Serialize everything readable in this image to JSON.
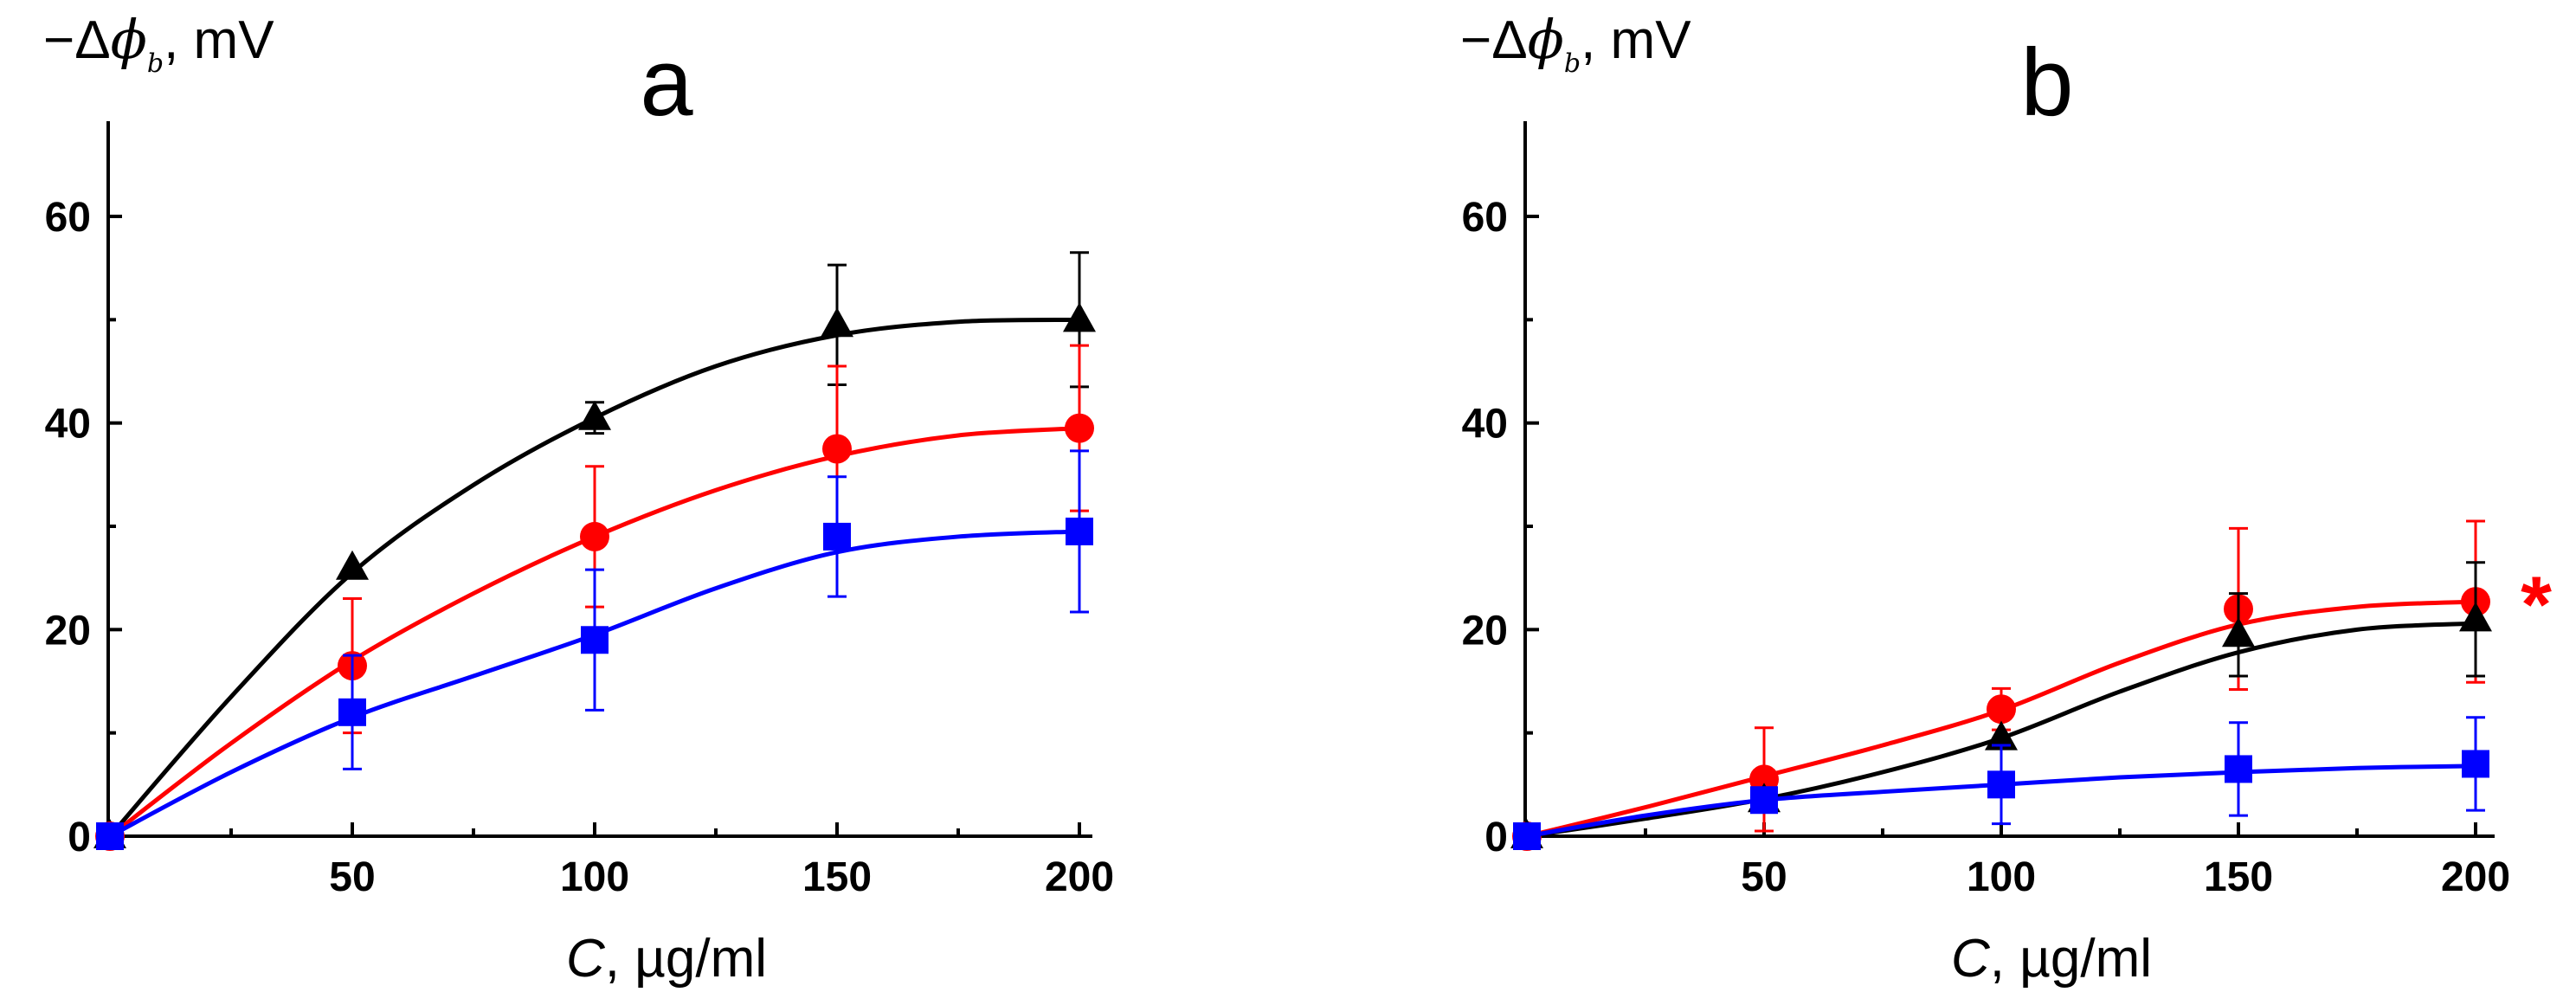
{
  "colors": {
    "black": "#000000",
    "red": "#ff0000",
    "blue": "#0000ff"
  },
  "chart_data": [
    {
      "type": "line",
      "panel": "a",
      "title": "a",
      "ylabel_prefix": "−Δ",
      "ylabel_symbol": "ϕ",
      "ylabel_sub": "b",
      "ylabel_unit": ", mV",
      "xlabel_symbol": "C",
      "xlabel_unit": ", µg/ml",
      "xlim": [
        0,
        205
      ],
      "ylim": [
        0,
        68
      ],
      "xticks": [
        50,
        100,
        150,
        200
      ],
      "yticks": [
        0,
        20,
        40,
        60
      ],
      "series": [
        {
          "name": "black",
          "marker": "triangle",
          "color": "#000000",
          "x": [
            0,
            50,
            100,
            150,
            200
          ],
          "y": [
            0,
            26,
            40.5,
            49.5,
            50
          ],
          "err": [
            0,
            0,
            1.5,
            5.8,
            6.5
          ],
          "fit_x": [
            0,
            25,
            50,
            75,
            100,
            125,
            150,
            175,
            200
          ],
          "fit_y": [
            0,
            13.5,
            25.5,
            34,
            40.5,
            45.5,
            48.5,
            49.8,
            50
          ]
        },
        {
          "name": "red",
          "marker": "circle",
          "color": "#ff0000",
          "x": [
            0,
            50,
            100,
            150,
            200
          ],
          "y": [
            0,
            16.5,
            29,
            37.5,
            39.5
          ],
          "err": [
            0,
            6.5,
            6.8,
            8,
            8
          ],
          "fit_x": [
            0,
            25,
            50,
            75,
            100,
            125,
            150,
            175,
            200
          ],
          "fit_y": [
            0,
            9,
            17,
            23.5,
            29,
            33.5,
            36.8,
            38.8,
            39.5
          ]
        },
        {
          "name": "blue",
          "marker": "square",
          "color": "#0000ff",
          "x": [
            0,
            50,
            100,
            150,
            200
          ],
          "y": [
            0,
            12,
            19,
            29,
            29.5
          ],
          "err": [
            0,
            5.5,
            6.8,
            5.8,
            7.8
          ],
          "fit_x": [
            0,
            25,
            50,
            75,
            100,
            125,
            150,
            175,
            200
          ],
          "fit_y": [
            0,
            6.2,
            11.5,
            15.5,
            19.5,
            24,
            27.5,
            29,
            29.5
          ]
        }
      ]
    },
    {
      "type": "line",
      "panel": "b",
      "title": "b",
      "ylabel_prefix": "−Δ",
      "ylabel_symbol": "ϕ",
      "ylabel_sub": "b",
      "ylabel_unit": ", mV",
      "xlabel_symbol": "C",
      "xlabel_unit": ", µg/ml",
      "xlim": [
        0,
        205
      ],
      "ylim": [
        0,
        68
      ],
      "xticks": [
        50,
        100,
        150,
        200
      ],
      "yticks": [
        0,
        20,
        40,
        60
      ],
      "annotation": "*",
      "series": [
        {
          "name": "red",
          "marker": "circle",
          "color": "#ff0000",
          "x": [
            0,
            50,
            100,
            150,
            200
          ],
          "y": [
            0,
            5.5,
            12.3,
            22,
            22.7
          ],
          "err": [
            0,
            5,
            2,
            7.8,
            7.8
          ],
          "fit_x": [
            0,
            25,
            50,
            75,
            100,
            125,
            150,
            175,
            200
          ],
          "fit_y": [
            0,
            2.8,
            5.8,
            8.8,
            12.2,
            16.8,
            20.5,
            22.2,
            22.7
          ]
        },
        {
          "name": "black",
          "marker": "triangle",
          "color": "#000000",
          "x": [
            0,
            50,
            100,
            150,
            200
          ],
          "y": [
            0,
            3.5,
            9.5,
            19.5,
            21
          ],
          "err": [
            0,
            0,
            0,
            4,
            5.5
          ],
          "fit_x": [
            0,
            25,
            50,
            75,
            100,
            125,
            150,
            175,
            200
          ],
          "fit_y": [
            0,
            1.7,
            3.6,
            6.2,
            9.5,
            14,
            17.8,
            20,
            20.6
          ]
        },
        {
          "name": "blue",
          "marker": "square",
          "color": "#0000ff",
          "x": [
            0,
            50,
            100,
            150,
            200
          ],
          "y": [
            0,
            3.5,
            5,
            6.5,
            7
          ],
          "err": [
            0,
            0,
            3.8,
            4.5,
            4.5
          ],
          "fit_x": [
            0,
            25,
            50,
            75,
            100,
            125,
            150,
            175,
            200
          ],
          "fit_y": [
            0,
            2,
            3.5,
            4.3,
            5,
            5.7,
            6.2,
            6.6,
            6.8
          ]
        }
      ]
    }
  ]
}
